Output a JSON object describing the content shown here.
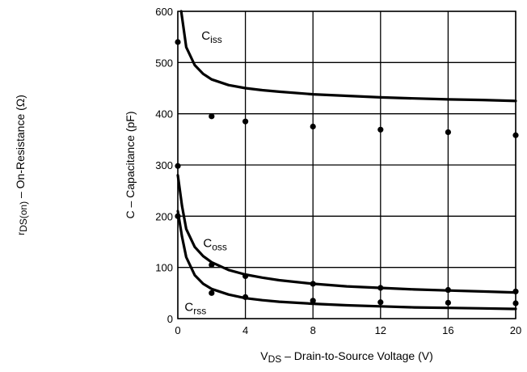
{
  "chart_data": {
    "type": "line",
    "xlabel": "V",
    "xlabel_sub": "DS",
    "xlabel_rest": " – Drain-to-Source Voltage (V)",
    "ylabel": "C – Capacitance (pF)",
    "ylabel_secondary_prefix": "r",
    "ylabel_secondary_sub": "DS(on)",
    "ylabel_secondary_rest": " – On-Resistance (Ω)",
    "xlim": [
      0,
      20
    ],
    "ylim": [
      0,
      600
    ],
    "x_ticks": [
      0,
      4,
      8,
      12,
      16,
      20
    ],
    "y_ticks": [
      0,
      100,
      200,
      300,
      400,
      500,
      600
    ],
    "grid": true,
    "series": [
      {
        "name": "C",
        "name_sub": "iss",
        "kind": "curve",
        "label_at": [
          1.4,
          545
        ],
        "x": [
          0.2,
          0.5,
          1,
          1.5,
          2,
          3,
          4,
          5,
          6,
          8,
          10,
          12,
          14,
          16,
          18,
          20
        ],
        "values": [
          600,
          530,
          495,
          478,
          467,
          456,
          450,
          446,
          443,
          438,
          435,
          432,
          430,
          428,
          427,
          425
        ]
      },
      {
        "name": "C",
        "name_sub": "oss",
        "kind": "curve",
        "label_at": [
          1.5,
          140
        ],
        "x": [
          0,
          0.25,
          0.5,
          1,
          1.5,
          2,
          3,
          4,
          5,
          6,
          8,
          10,
          12,
          14,
          16,
          18,
          20
        ],
        "values": [
          280,
          220,
          175,
          140,
          122,
          110,
          95,
          86,
          80,
          75,
          68,
          63,
          60,
          57,
          55,
          53,
          51
        ]
      },
      {
        "name": "C",
        "name_sub": "rss",
        "kind": "curve",
        "label_at": [
          0.4,
          15
        ],
        "x": [
          0,
          0.25,
          0.5,
          1,
          1.5,
          2,
          3,
          4,
          5,
          6,
          8,
          10,
          12,
          14,
          16,
          18,
          20
        ],
        "values": [
          210,
          160,
          120,
          85,
          68,
          58,
          47,
          40,
          36,
          33,
          29,
          26,
          24,
          22,
          21,
          20,
          19
        ]
      },
      {
        "name": "",
        "kind": "points",
        "x": [
          0,
          2,
          4,
          8,
          12,
          16,
          20
        ],
        "values": [
          540,
          395,
          385,
          375,
          369,
          364,
          358
        ]
      },
      {
        "name": "",
        "kind": "points",
        "x": [
          0,
          2,
          4,
          8,
          12,
          16,
          20
        ],
        "values": [
          298,
          105,
          83,
          68,
          60,
          56,
          53
        ]
      },
      {
        "name": "",
        "kind": "points",
        "x": [
          0,
          2,
          4,
          8,
          12,
          16,
          20
        ],
        "values": [
          200,
          50,
          42,
          35,
          32,
          31,
          30
        ]
      }
    ]
  }
}
